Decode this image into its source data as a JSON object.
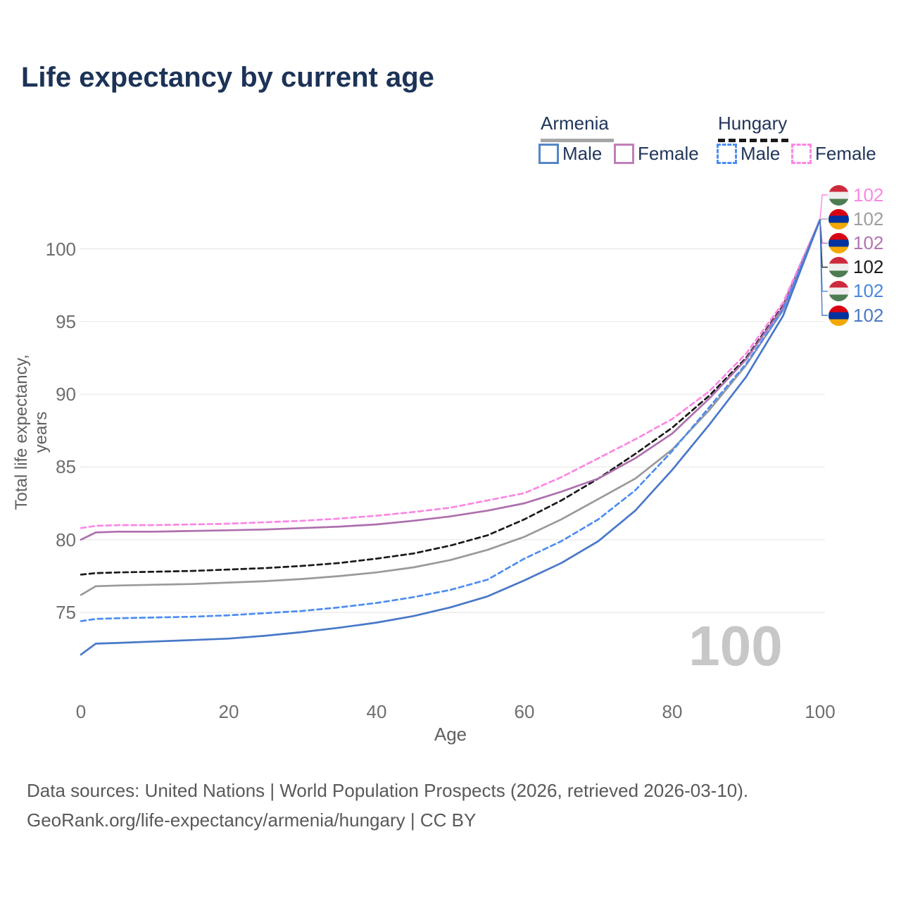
{
  "title": "Life expectancy by current age",
  "legend": {
    "groups": [
      {
        "label": "Armenia",
        "underline_style": "solid",
        "underline_color": "#a6a6a6"
      },
      {
        "label": "Hungary",
        "underline_style": "dashed",
        "underline_color": "#1a1a1a"
      }
    ],
    "items": [
      {
        "label": "Male",
        "swatch_color": "#5585c8",
        "dashed": false
      },
      {
        "label": "Female",
        "swatch_color": "#c07fba",
        "dashed": false
      },
      {
        "label": "Male",
        "swatch_color": "#4d8df2",
        "dashed": true
      },
      {
        "label": "Female",
        "swatch_color": "#fb87e4",
        "dashed": true
      }
    ]
  },
  "chart_data": {
    "type": "line",
    "title": "Life expectancy by current age",
    "xlabel": "Age",
    "ylabel": "Total life expectancy, years",
    "x_ticks": [
      0,
      20,
      40,
      60,
      80,
      100
    ],
    "y_ticks": [
      75,
      80,
      85,
      90,
      95,
      100
    ],
    "xlim": [
      0,
      100
    ],
    "ylim_drawn": [
      72,
      102
    ],
    "grid": "horizontal-only",
    "ages": [
      0,
      2,
      5,
      10,
      15,
      20,
      25,
      30,
      35,
      40,
      45,
      50,
      55,
      60,
      65,
      70,
      75,
      80,
      85,
      90,
      95,
      100
    ],
    "series": [
      {
        "id": "armenia_total",
        "name": "Armenia (total)",
        "country": "Armenia",
        "color": "#9a9a9a",
        "label_color": "#9e9e9e",
        "dashed": false,
        "flag": "armenia",
        "end_label": "102",
        "values": [
          76.2,
          76.8,
          76.85,
          76.9,
          76.95,
          77.05,
          77.15,
          77.3,
          77.5,
          77.75,
          78.1,
          78.6,
          79.3,
          80.2,
          81.4,
          82.8,
          84.2,
          86.2,
          88.9,
          92.0,
          95.8,
          102
        ]
      },
      {
        "id": "hungary_total",
        "name": "Hungary (total)",
        "country": "Hungary",
        "color": "#1a1a1a",
        "label_color": "#1a1a1a",
        "dashed": true,
        "flag": "hungary",
        "end_label": "102",
        "values": [
          77.6,
          77.7,
          77.75,
          77.8,
          77.85,
          77.95,
          78.05,
          78.2,
          78.4,
          78.7,
          79.05,
          79.6,
          80.3,
          81.4,
          82.7,
          84.2,
          85.9,
          87.7,
          89.9,
          92.5,
          96.1,
          102
        ]
      },
      {
        "id": "armenia_female",
        "name": "Armenia Female",
        "country": "Armenia",
        "color": "#ad6fad",
        "label_color": "#b273b0",
        "dashed": false,
        "flag": "armenia",
        "end_label": "102",
        "values": [
          80.0,
          80.5,
          80.55,
          80.55,
          80.6,
          80.65,
          80.7,
          80.8,
          80.9,
          81.05,
          81.3,
          81.6,
          82.0,
          82.5,
          83.3,
          84.2,
          85.6,
          87.3,
          89.7,
          92.4,
          96.0,
          102
        ]
      },
      {
        "id": "hungary_female",
        "name": "Hungary Female",
        "country": "Hungary",
        "color": "#fb87e4",
        "label_color": "#fb87e4",
        "dashed": true,
        "flag": "hungary",
        "end_label": "102",
        "values": [
          80.8,
          80.95,
          81.0,
          81.0,
          81.05,
          81.1,
          81.2,
          81.3,
          81.45,
          81.65,
          81.9,
          82.2,
          82.7,
          83.2,
          84.3,
          85.6,
          86.9,
          88.3,
          90.2,
          92.8,
          96.3,
          102
        ]
      },
      {
        "id": "hungary_male",
        "name": "Hungary Male",
        "country": "Hungary",
        "color": "#4d8df2",
        "label_color": "#4b86e0",
        "dashed": true,
        "flag": "hungary",
        "end_label": "102",
        "values": [
          74.4,
          74.55,
          74.6,
          74.65,
          74.7,
          74.8,
          74.95,
          75.1,
          75.35,
          75.65,
          76.05,
          76.55,
          77.25,
          78.7,
          79.9,
          81.4,
          83.4,
          86.1,
          89.1,
          92.1,
          95.8,
          102
        ]
      },
      {
        "id": "armenia_male",
        "name": "Armenia Male",
        "country": "Armenia",
        "color": "#4878c8",
        "label_color": "#4a79c4",
        "dashed": false,
        "flag": "armenia",
        "end_label": "102",
        "values": [
          72.1,
          72.85,
          72.9,
          73.0,
          73.1,
          73.2,
          73.4,
          73.65,
          73.95,
          74.3,
          74.75,
          75.35,
          76.1,
          77.2,
          78.4,
          79.9,
          82.0,
          84.8,
          87.9,
          91.2,
          95.4,
          102
        ]
      }
    ],
    "end_label_order": [
      "hungary_female",
      "armenia_total",
      "armenia_female",
      "hungary_total",
      "hungary_male",
      "armenia_male"
    ],
    "legend_position": "top-right"
  },
  "watermark": "100",
  "footer": {
    "line1": "Data sources: United Nations | World Population Prospects (2026, retrieved 2026-03-10).",
    "line2": "GeoRank.org/life-expectancy/armenia/hungary | CC BY"
  }
}
